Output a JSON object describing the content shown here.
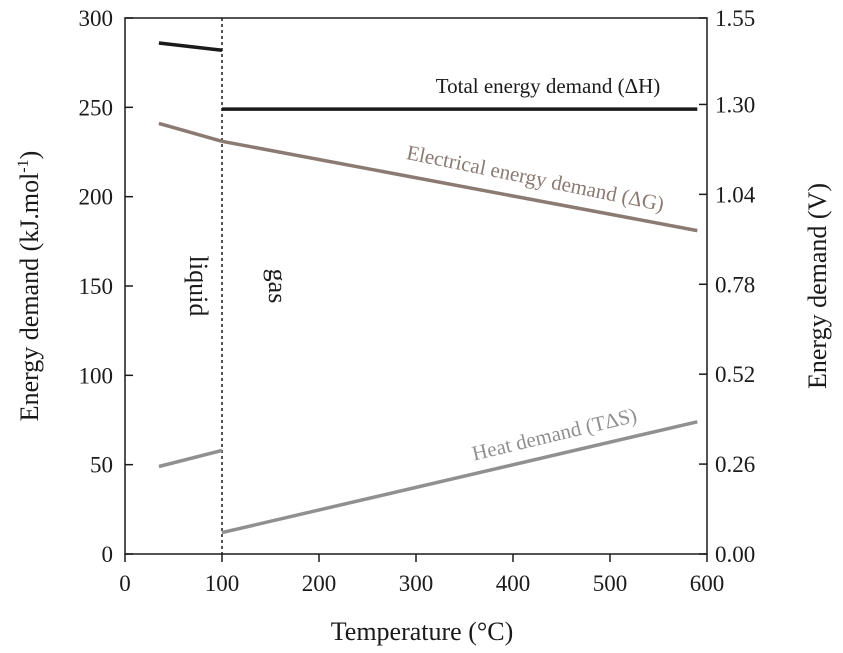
{
  "chart_data": {
    "type": "line",
    "title": "",
    "xlabel": "Temperature (°C)",
    "ylabel_left": {
      "main": "Energy demand  (kJ.mol",
      "sup": "-1",
      "close": ")"
    },
    "ylabel_right": "Energy demand  (V)",
    "xlim": [
      0,
      600
    ],
    "ylim_left": [
      0,
      300
    ],
    "ylim_right": [
      0.0,
      1.55
    ],
    "x_ticks": [
      "0",
      "100",
      "200",
      "300",
      "400",
      "500",
      "600"
    ],
    "y_left_ticks": [
      "0",
      "50",
      "100",
      "150",
      "200",
      "250",
      "300"
    ],
    "y_right_ticks": [
      "0.00",
      "0.26",
      "0.52",
      "0.78",
      "1.04",
      "1.30",
      "1.55"
    ],
    "phase_boundary_x": 100,
    "regions": {
      "liquid": "liquid",
      "gas": "gas"
    },
    "series": [
      {
        "name": "Total energy demand (ΔH)",
        "color": "#1a1a1a",
        "segments": [
          [
            [
              35,
              286
            ],
            [
              100,
              282
            ]
          ],
          [
            [
              100,
              249
            ],
            [
              590,
              249
            ]
          ]
        ]
      },
      {
        "name": "Electrical energy demand (ΔG)",
        "color": "#8a7a72",
        "segments": [
          [
            [
              35,
              241
            ],
            [
              100,
              231
            ]
          ],
          [
            [
              100,
              231
            ],
            [
              590,
              181
            ]
          ]
        ]
      },
      {
        "name": "Heat demand (TΔS)",
        "color": "#909090",
        "segments": [
          [
            [
              35,
              49
            ],
            [
              100,
              58
            ]
          ],
          [
            [
              100,
              12
            ],
            [
              590,
              74
            ]
          ]
        ]
      }
    ],
    "annotations": {
      "total": "Total energy demand (ΔH)",
      "electrical": "Electrical energy demand (ΔG)",
      "heat": "Heat demand (TΔS)"
    }
  }
}
